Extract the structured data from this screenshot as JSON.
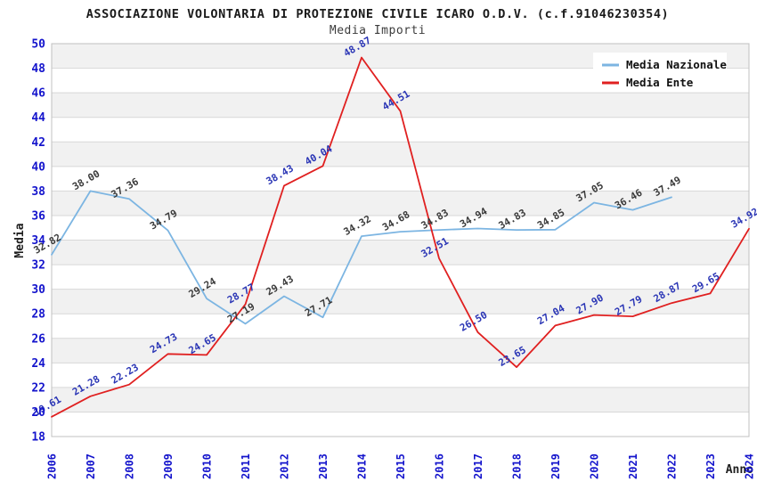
{
  "title": "ASSOCIAZIONE VOLONTARIA DI PROTEZIONE CIVILE ICARO O.D.V. (c.f.91046230354)",
  "subtitle": "Media Importi",
  "chart_data": {
    "type": "line",
    "x": [
      2006,
      2007,
      2008,
      2009,
      2010,
      2011,
      2012,
      2013,
      2014,
      2015,
      2016,
      2017,
      2018,
      2019,
      2020,
      2021,
      2022,
      2023,
      2024
    ],
    "series": [
      {
        "name": "Media Nazionale",
        "color": "#7cb5e2",
        "label_color": "#3a3a3a",
        "values": [
          32.82,
          38.0,
          37.36,
          34.79,
          29.24,
          27.19,
          29.43,
          27.71,
          34.32,
          34.68,
          34.83,
          34.94,
          34.83,
          34.85,
          37.05,
          36.46,
          37.49,
          null,
          null
        ]
      },
      {
        "name": "Media Ente",
        "color": "#e02020",
        "label_color": "#2a35b5",
        "values": [
          19.61,
          21.28,
          22.23,
          24.73,
          24.65,
          28.77,
          38.43,
          40.04,
          48.87,
          44.51,
          32.51,
          26.5,
          23.65,
          27.04,
          27.9,
          27.79,
          28.87,
          29.65,
          34.92
        ]
      }
    ],
    "xlabel": "Anno",
    "ylabel": "Media",
    "ylim": [
      18,
      50
    ],
    "ytick_step": 2,
    "grid": "horizontal alternating bands every 2 units, thin gray separator lines, no vertical gridlines",
    "legend_position": "top-right inside plot, white box",
    "value_label_rotation_deg": -30,
    "colors": {
      "axis_tick_label": "#1414cc",
      "band_gray": "#f1f1f1",
      "band_white": "#ffffff",
      "grid_line": "#d8d8d8",
      "plot_border": "#c0c0c0"
    }
  }
}
